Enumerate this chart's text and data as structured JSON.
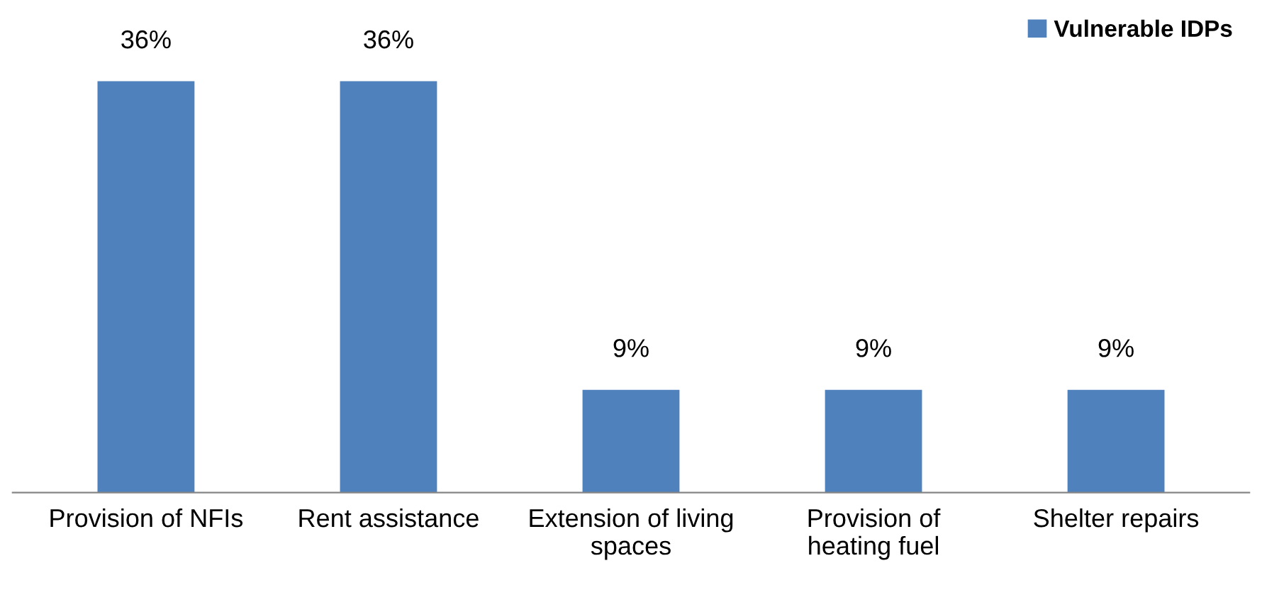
{
  "chart_data": {
    "type": "bar",
    "categories": [
      "Provision of NFIs",
      "Rent assistance",
      "Extension of living\nspaces",
      "Provision of\nheating fuel",
      "Shelter repairs"
    ],
    "series": [
      {
        "name": "Vulnerable IDPs",
        "color": "#4f81bd",
        "values": [
          36,
          36,
          9,
          9,
          9
        ],
        "value_labels": [
          "36%",
          "36%",
          "9%",
          "9%",
          "9%"
        ]
      }
    ],
    "legend": "top right",
    "grid": false
  }
}
